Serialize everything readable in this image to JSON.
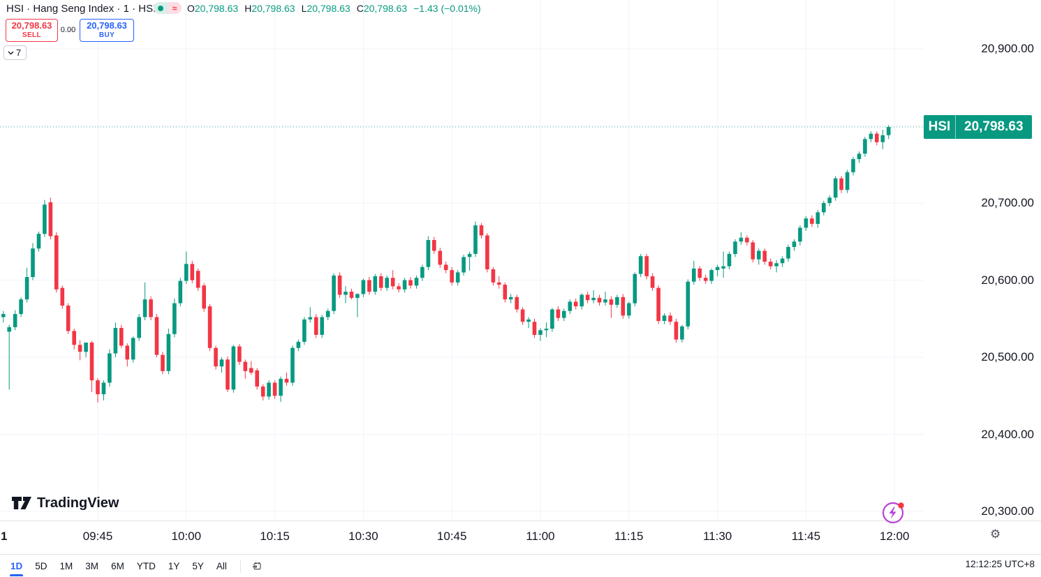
{
  "symbol_bar": {
    "title": "HSI · Hang Seng Index · 1 · HSI",
    "status_icons": [
      "market-open-dot",
      "delayed-data-approx"
    ],
    "ohlc": [
      {
        "label": "O",
        "value": "20,798.63"
      },
      {
        "label": "H",
        "value": "20,798.63"
      },
      {
        "label": "L",
        "value": "20,798.63"
      },
      {
        "label": "C",
        "value": "20,798.63"
      }
    ],
    "change": "−1.43 (−0.01%)"
  },
  "trade_panel": {
    "sell_price": "20,798.63",
    "sell_label": "SELL",
    "spread": "0.00",
    "buy_price": "20,798.63",
    "buy_label": "BUY"
  },
  "objects_tray": {
    "count": "7"
  },
  "chart_data": {
    "type": "candlestick",
    "symbol": "HSI",
    "interval": "1 minute",
    "start_time": "09:29",
    "interval_min": 1,
    "last_price": 20798.63,
    "price_line": 20798.63,
    "y_grid": [
      20900,
      20800,
      20700,
      20600,
      20500,
      20400,
      20300
    ],
    "candles": [
      [
        20552,
        20560,
        20545,
        20556
      ],
      [
        20533,
        20542,
        20458,
        20539
      ],
      [
        20539,
        20561,
        20535,
        20556
      ],
      [
        20556,
        20578,
        20552,
        20575
      ],
      [
        20575,
        20616,
        20571,
        20604
      ],
      [
        20604,
        20648,
        20600,
        20641
      ],
      [
        20641,
        20663,
        20637,
        20660
      ],
      [
        20660,
        20704,
        20656,
        20698
      ],
      [
        20701,
        20707,
        20653,
        20657
      ],
      [
        20658,
        20662,
        20584,
        20588
      ],
      [
        20590,
        20593,
        20563,
        20567
      ],
      [
        20567,
        20570,
        20530,
        20534
      ],
      [
        20534,
        20537,
        20510,
        20516
      ],
      [
        20516,
        20522,
        20496,
        20507
      ],
      [
        20507,
        20519,
        20500,
        20519
      ],
      [
        20519,
        20521,
        20455,
        20470
      ],
      [
        20470,
        20473,
        20441,
        20452
      ],
      [
        20452,
        20470,
        20444,
        20467
      ],
      [
        20467,
        20510,
        20462,
        20505
      ],
      [
        20505,
        20545,
        20500,
        20538
      ],
      [
        20538,
        20542,
        20512,
        20515
      ],
      [
        20515,
        20518,
        20488,
        20497
      ],
      [
        20497,
        20527,
        20493,
        20525
      ],
      [
        20525,
        20556,
        20521,
        20552
      ],
      [
        20552,
        20597,
        20548,
        20575
      ],
      [
        20575,
        20579,
        20548,
        20552
      ],
      [
        20552,
        20556,
        20500,
        20503
      ],
      [
        20503,
        20507,
        20478,
        20482
      ],
      [
        20482,
        20537,
        20478,
        20530
      ],
      [
        20530,
        20576,
        20526,
        20570
      ],
      [
        20570,
        20603,
        20566,
        20599
      ],
      [
        20599,
        20637,
        20595,
        20621
      ],
      [
        20621,
        20625,
        20596,
        20600
      ],
      [
        20612,
        20615,
        20586,
        20590
      ],
      [
        20593,
        20596,
        20559,
        20563
      ],
      [
        20566,
        20569,
        20508,
        20512
      ],
      [
        20512,
        20515,
        20484,
        20488
      ],
      [
        20488,
        20500,
        20480,
        20497
      ],
      [
        20497,
        20501,
        20455,
        20458
      ],
      [
        20458,
        20516,
        20454,
        20514
      ],
      [
        20514,
        20517,
        20490,
        20494
      ],
      [
        20494,
        20497,
        20472,
        20482
      ],
      [
        20486,
        20495,
        20477,
        20480
      ],
      [
        20483,
        20486,
        20458,
        20462
      ],
      [
        20462,
        20465,
        20444,
        20449
      ],
      [
        20449,
        20470,
        20445,
        20467
      ],
      [
        20467,
        20470,
        20446,
        20450
      ],
      [
        20450,
        20475,
        20442,
        20472
      ],
      [
        20472,
        20480,
        20463,
        20467
      ],
      [
        20467,
        20515,
        20463,
        20512
      ],
      [
        20512,
        20523,
        20508,
        20520
      ],
      [
        20520,
        20552,
        20516,
        20549
      ],
      [
        20549,
        20565,
        20545,
        20552
      ],
      [
        20552,
        20556,
        20525,
        20529
      ],
      [
        20529,
        20555,
        20525,
        20552
      ],
      [
        20552,
        20563,
        20548,
        20560
      ],
      [
        20560,
        20609,
        20556,
        20606
      ],
      [
        20606,
        20610,
        20577,
        20581
      ],
      [
        20581,
        20592,
        20570,
        20585
      ],
      [
        20585,
        20589,
        20575,
        20577
      ],
      [
        20577,
        20583,
        20552,
        20582
      ],
      [
        20582,
        20602,
        20578,
        20600
      ],
      [
        20600,
        20604,
        20581,
        20585
      ],
      [
        20585,
        20608,
        20581,
        20605
      ],
      [
        20605,
        20609,
        20586,
        20590
      ],
      [
        20590,
        20606,
        20586,
        20603
      ],
      [
        20603,
        20613,
        20588,
        20592
      ],
      [
        20592,
        20596,
        20584,
        20588
      ],
      [
        20588,
        20603,
        20584,
        20600
      ],
      [
        20600,
        20604,
        20589,
        20593
      ],
      [
        20593,
        20606,
        20589,
        20603
      ],
      [
        20603,
        20620,
        20599,
        20617
      ],
      [
        20617,
        20657,
        20613,
        20652
      ],
      [
        20652,
        20656,
        20634,
        20638
      ],
      [
        20638,
        20642,
        20616,
        20620
      ],
      [
        20620,
        20624,
        20609,
        20613
      ],
      [
        20613,
        20617,
        20593,
        20597
      ],
      [
        20597,
        20613,
        20593,
        20610
      ],
      [
        20610,
        20633,
        20606,
        20630
      ],
      [
        20630,
        20637,
        20612,
        20634
      ],
      [
        20634,
        20676,
        20630,
        20671
      ],
      [
        20671,
        20674,
        20654,
        20658
      ],
      [
        20658,
        20661,
        20610,
        20614
      ],
      [
        20614,
        20617,
        20593,
        20597
      ],
      [
        20597,
        20605,
        20589,
        20594
      ],
      [
        20594,
        20597,
        20571,
        20575
      ],
      [
        20575,
        20582,
        20570,
        20578
      ],
      [
        20578,
        20581,
        20558,
        20562
      ],
      [
        20562,
        20565,
        20542,
        20546
      ],
      [
        20546,
        20552,
        20538,
        20549
      ],
      [
        20546,
        20550,
        20525,
        20529
      ],
      [
        20529,
        20538,
        20521,
        20535
      ],
      [
        20535,
        20545,
        20526,
        20537
      ],
      [
        20537,
        20564,
        20533,
        20562
      ],
      [
        20562,
        20566,
        20547,
        20551
      ],
      [
        20551,
        20563,
        20547,
        20560
      ],
      [
        20560,
        20575,
        20556,
        20572
      ],
      [
        20572,
        20576,
        20562,
        20566
      ],
      [
        20566,
        20583,
        20562,
        20581
      ],
      [
        20581,
        20585,
        20570,
        20574
      ],
      [
        20574,
        20587,
        20570,
        20577
      ],
      [
        20577,
        20581,
        20567,
        20571
      ],
      [
        20571,
        20585,
        20567,
        20575
      ],
      [
        20575,
        20579,
        20551,
        20568
      ],
      [
        20568,
        20581,
        20564,
        20578
      ],
      [
        20578,
        20582,
        20550,
        20554
      ],
      [
        20554,
        20572,
        20550,
        20570
      ],
      [
        20570,
        20610,
        20566,
        20608
      ],
      [
        20608,
        20634,
        20604,
        20631
      ],
      [
        20631,
        20634,
        20601,
        20605
      ],
      [
        20605,
        20609,
        20586,
        20590
      ],
      [
        20590,
        20593,
        20543,
        20547
      ],
      [
        20547,
        20557,
        20543,
        20554
      ],
      [
        20554,
        20558,
        20542,
        20546
      ],
      [
        20546,
        20550,
        20519,
        20523
      ],
      [
        20523,
        20542,
        20519,
        20540
      ],
      [
        20540,
        20601,
        20536,
        20598
      ],
      [
        20598,
        20625,
        20594,
        20615
      ],
      [
        20615,
        20618,
        20599,
        20603
      ],
      [
        20603,
        20607,
        20595,
        20599
      ],
      [
        20599,
        20615,
        20595,
        20613
      ],
      [
        20613,
        20620,
        20605,
        20617
      ],
      [
        20615,
        20637,
        20603,
        20618
      ],
      [
        20618,
        20637,
        20614,
        20634
      ],
      [
        20634,
        20653,
        20630,
        20650
      ],
      [
        20650,
        20662,
        20646,
        20655
      ],
      [
        20655,
        20658,
        20645,
        20649
      ],
      [
        20649,
        20652,
        20623,
        20627
      ],
      [
        20627,
        20641,
        20620,
        20638
      ],
      [
        20638,
        20641,
        20620,
        20624
      ],
      [
        20624,
        20628,
        20614,
        20618
      ],
      [
        20618,
        20626,
        20610,
        20622
      ],
      [
        20622,
        20631,
        20617,
        20628
      ],
      [
        20628,
        20646,
        20624,
        20643
      ],
      [
        20643,
        20653,
        20638,
        20650
      ],
      [
        20650,
        20671,
        20645,
        20668
      ],
      [
        20668,
        20683,
        20664,
        20680
      ],
      [
        20680,
        20684,
        20669,
        20673
      ],
      [
        20673,
        20691,
        20668,
        20688
      ],
      [
        20688,
        20703,
        20684,
        20700
      ],
      [
        20700,
        20710,
        20696,
        20707
      ],
      [
        20707,
        20735,
        20703,
        20732
      ],
      [
        20732,
        20735,
        20713,
        20717
      ],
      [
        20717,
        20743,
        20713,
        20740
      ],
      [
        20740,
        20760,
        20736,
        20757
      ],
      [
        20757,
        20767,
        20752,
        20764
      ],
      [
        20764,
        20786,
        20760,
        20783
      ],
      [
        20783,
        20793,
        20779,
        20790
      ],
      [
        20790,
        20793,
        20775,
        20779
      ],
      [
        20779,
        20795,
        20770,
        20788
      ],
      [
        20788,
        20801,
        20783,
        20798.63
      ]
    ]
  },
  "price_scale": {
    "labels": [
      {
        "price": 20900,
        "text": "20,900.00"
      },
      {
        "price": 20700,
        "text": "20,700.00"
      },
      {
        "price": 20600,
        "text": "20,600.00"
      },
      {
        "price": 20500,
        "text": "20,500.00"
      },
      {
        "price": 20400,
        "text": "20,400.00"
      },
      {
        "price": 20300,
        "text": "20,300.00"
      }
    ],
    "price_label": {
      "symbol": "HSI",
      "text": "20,798.63"
    }
  },
  "time_scale": {
    "ticks": [
      {
        "label": "1",
        "minute": 0,
        "session_start": true
      },
      {
        "label": "09:45",
        "minute": 16
      },
      {
        "label": "10:00",
        "minute": 31
      },
      {
        "label": "10:15",
        "minute": 46
      },
      {
        "label": "10:30",
        "minute": 61
      },
      {
        "label": "10:45",
        "minute": 76
      },
      {
        "label": "11:00",
        "minute": 91
      },
      {
        "label": "11:15",
        "minute": 106
      },
      {
        "label": "11:30",
        "minute": 121
      },
      {
        "label": "11:45",
        "minute": 136
      },
      {
        "label": "12:00",
        "minute": 151
      }
    ]
  },
  "watermark": {
    "text": "TradingView"
  },
  "footer": {
    "ranges": [
      {
        "label": "1D",
        "selected": true
      },
      {
        "label": "5D",
        "selected": false
      },
      {
        "label": "1M",
        "selected": false
      },
      {
        "label": "3M",
        "selected": false
      },
      {
        "label": "6M",
        "selected": false
      },
      {
        "label": "YTD",
        "selected": false
      },
      {
        "label": "1Y",
        "selected": false
      },
      {
        "label": "5Y",
        "selected": false
      },
      {
        "label": "All",
        "selected": false
      }
    ],
    "goto_icon": "calendar-go-to-date",
    "clock": "12:12:25 UTC+8"
  },
  "icons": {
    "corner": "gear-settings",
    "boost": "lightning-with-notification"
  },
  "colors": {
    "up": "#089981",
    "down": "#f23645",
    "sell": "#f23645",
    "buy": "#2962ff",
    "accent": "#2962ff",
    "grid": "#f0f3fa",
    "text": "#131722",
    "muted": "#787b86",
    "border": "#e0e3eb",
    "price_label_bg": "#089981",
    "lightning": "#b843d8",
    "notification": "#f23645"
  }
}
